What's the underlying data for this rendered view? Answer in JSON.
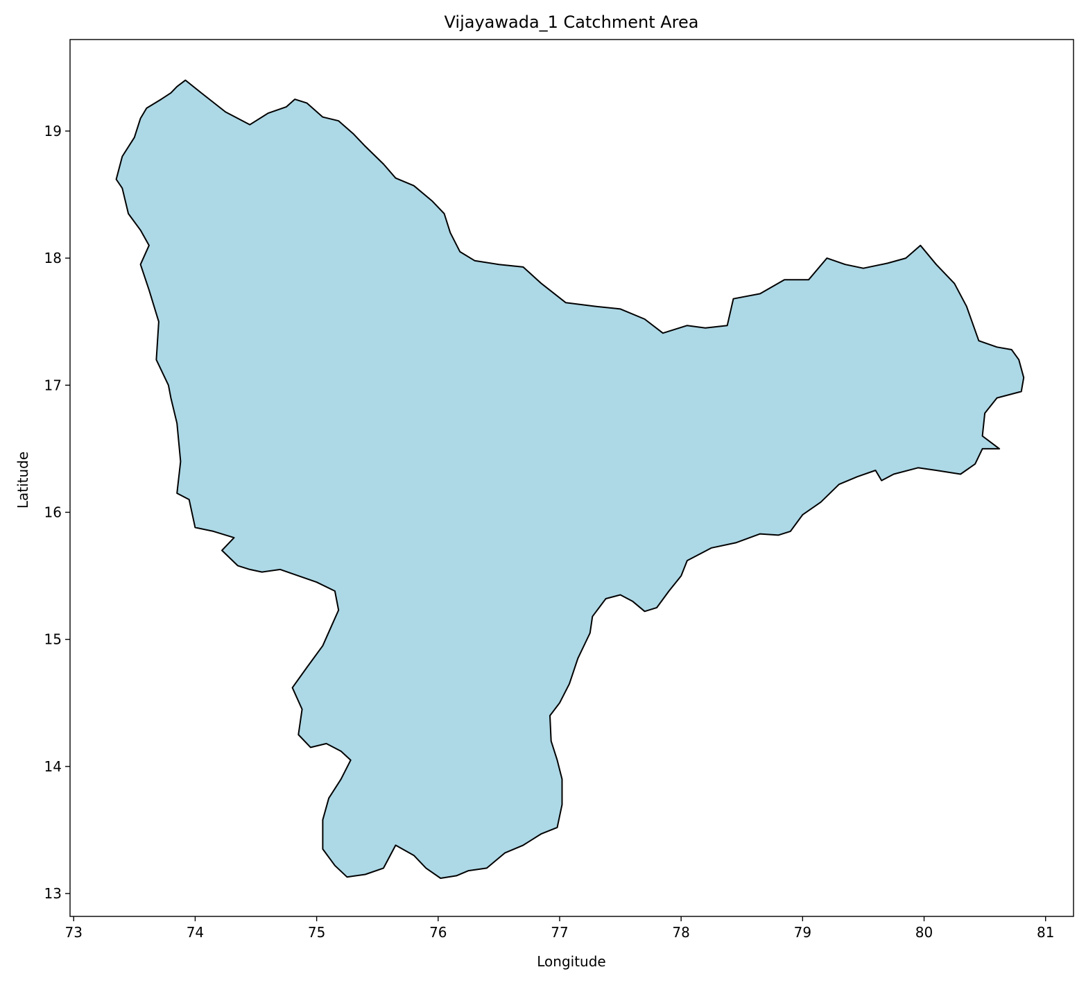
{
  "chart_data": {
    "type": "map",
    "title": "Vijayawada_1 Catchment Area",
    "xlabel": "Longitude",
    "ylabel": "Latitude",
    "xlim": [
      72.97,
      81.23
    ],
    "ylim": [
      12.82,
      19.72
    ],
    "x_ticks": [
      73,
      74,
      75,
      76,
      77,
      78,
      79,
      80,
      81
    ],
    "y_ticks": [
      13,
      14,
      15,
      16,
      17,
      18,
      19
    ],
    "grid": false,
    "legend": "none",
    "fill_color": "#add8e6",
    "edge_color": "#000000",
    "region": {
      "name": "Vijayawada_1",
      "boundary": [
        [
          73.92,
          19.4
        ],
        [
          74.05,
          19.3
        ],
        [
          74.25,
          19.15
        ],
        [
          74.45,
          19.05
        ],
        [
          74.6,
          19.14
        ],
        [
          74.75,
          19.19
        ],
        [
          74.82,
          19.25
        ],
        [
          74.92,
          19.22
        ],
        [
          75.05,
          19.11
        ],
        [
          75.18,
          19.08
        ],
        [
          75.3,
          18.98
        ],
        [
          75.4,
          18.88
        ],
        [
          75.55,
          18.74
        ],
        [
          75.65,
          18.63
        ],
        [
          75.8,
          18.57
        ],
        [
          75.95,
          18.45
        ],
        [
          76.05,
          18.35
        ],
        [
          76.1,
          18.2
        ],
        [
          76.18,
          18.05
        ],
        [
          76.3,
          17.98
        ],
        [
          76.5,
          17.95
        ],
        [
          76.7,
          17.93
        ],
        [
          76.85,
          17.8
        ],
        [
          77.05,
          17.65
        ],
        [
          77.3,
          17.62
        ],
        [
          77.5,
          17.6
        ],
        [
          77.7,
          17.52
        ],
        [
          77.85,
          17.41
        ],
        [
          78.05,
          17.47
        ],
        [
          78.2,
          17.45
        ],
        [
          78.38,
          17.47
        ],
        [
          78.43,
          17.68
        ],
        [
          78.65,
          17.72
        ],
        [
          78.85,
          17.83
        ],
        [
          79.05,
          17.83
        ],
        [
          79.2,
          18.0
        ],
        [
          79.35,
          17.95
        ],
        [
          79.5,
          17.92
        ],
        [
          79.7,
          17.96
        ],
        [
          79.85,
          18.0
        ],
        [
          79.97,
          18.1
        ],
        [
          80.1,
          17.95
        ],
        [
          80.25,
          17.8
        ],
        [
          80.35,
          17.62
        ],
        [
          80.45,
          17.35
        ],
        [
          80.6,
          17.3
        ],
        [
          80.72,
          17.28
        ],
        [
          80.78,
          17.2
        ],
        [
          80.82,
          17.06
        ],
        [
          80.8,
          16.95
        ],
        [
          80.6,
          16.9
        ],
        [
          80.5,
          16.78
        ],
        [
          80.48,
          16.6
        ],
        [
          80.62,
          16.5
        ],
        [
          80.48,
          16.5
        ],
        [
          80.42,
          16.38
        ],
        [
          80.3,
          16.3
        ],
        [
          80.1,
          16.33
        ],
        [
          79.95,
          16.35
        ],
        [
          79.75,
          16.3
        ],
        [
          79.65,
          16.25
        ],
        [
          79.6,
          16.33
        ],
        [
          79.45,
          16.28
        ],
        [
          79.3,
          16.22
        ],
        [
          79.15,
          16.08
        ],
        [
          79.0,
          15.98
        ],
        [
          78.9,
          15.85
        ],
        [
          78.8,
          15.82
        ],
        [
          78.65,
          15.83
        ],
        [
          78.45,
          15.76
        ],
        [
          78.25,
          15.72
        ],
        [
          78.05,
          15.62
        ],
        [
          78.0,
          15.5
        ],
        [
          77.9,
          15.38
        ],
        [
          77.8,
          15.25
        ],
        [
          77.7,
          15.22
        ],
        [
          77.6,
          15.3
        ],
        [
          77.5,
          15.35
        ],
        [
          77.38,
          15.32
        ],
        [
          77.27,
          15.18
        ],
        [
          77.25,
          15.05
        ],
        [
          77.15,
          14.85
        ],
        [
          77.08,
          14.65
        ],
        [
          77.0,
          14.5
        ],
        [
          76.92,
          14.4
        ],
        [
          76.93,
          14.2
        ],
        [
          76.98,
          14.05
        ],
        [
          77.02,
          13.9
        ],
        [
          77.02,
          13.7
        ],
        [
          76.98,
          13.52
        ],
        [
          76.85,
          13.47
        ],
        [
          76.7,
          13.38
        ],
        [
          76.55,
          13.32
        ],
        [
          76.4,
          13.2
        ],
        [
          76.25,
          13.18
        ],
        [
          76.15,
          13.14
        ],
        [
          76.02,
          13.12
        ],
        [
          75.9,
          13.2
        ],
        [
          75.8,
          13.3
        ],
        [
          75.65,
          13.38
        ],
        [
          75.55,
          13.2
        ],
        [
          75.4,
          13.15
        ],
        [
          75.25,
          13.13
        ],
        [
          75.15,
          13.22
        ],
        [
          75.05,
          13.35
        ],
        [
          75.05,
          13.58
        ],
        [
          75.1,
          13.75
        ],
        [
          75.2,
          13.9
        ],
        [
          75.28,
          14.05
        ],
        [
          75.2,
          14.12
        ],
        [
          75.08,
          14.18
        ],
        [
          74.95,
          14.15
        ],
        [
          74.85,
          14.25
        ],
        [
          74.88,
          14.45
        ],
        [
          74.8,
          14.62
        ],
        [
          74.92,
          14.78
        ],
        [
          75.05,
          14.95
        ],
        [
          75.12,
          15.1
        ],
        [
          75.18,
          15.23
        ],
        [
          75.15,
          15.38
        ],
        [
          75.0,
          15.45
        ],
        [
          74.85,
          15.5
        ],
        [
          74.7,
          15.55
        ],
        [
          74.55,
          15.53
        ],
        [
          74.45,
          15.55
        ],
        [
          74.35,
          15.58
        ],
        [
          74.22,
          15.7
        ],
        [
          74.32,
          15.8
        ],
        [
          74.15,
          15.85
        ],
        [
          74.0,
          15.88
        ],
        [
          73.95,
          16.1
        ],
        [
          73.85,
          16.15
        ],
        [
          73.88,
          16.4
        ],
        [
          73.85,
          16.7
        ],
        [
          73.8,
          16.9
        ],
        [
          73.78,
          17.0
        ],
        [
          73.68,
          17.2
        ],
        [
          73.7,
          17.5
        ],
        [
          73.62,
          17.75
        ],
        [
          73.55,
          17.95
        ],
        [
          73.62,
          18.1
        ],
        [
          73.55,
          18.22
        ],
        [
          73.45,
          18.35
        ],
        [
          73.4,
          18.55
        ],
        [
          73.35,
          18.62
        ],
        [
          73.4,
          18.8
        ],
        [
          73.5,
          18.95
        ],
        [
          73.55,
          19.1
        ],
        [
          73.6,
          19.18
        ],
        [
          73.72,
          19.25
        ],
        [
          73.8,
          19.3
        ],
        [
          73.85,
          19.35
        ]
      ]
    }
  }
}
